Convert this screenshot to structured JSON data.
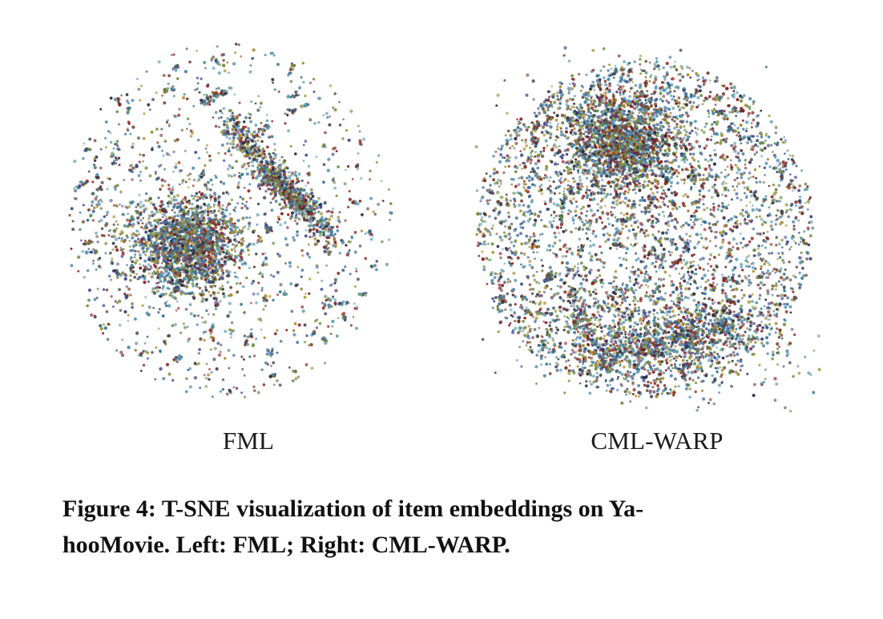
{
  "figure": {
    "panels": [
      {
        "label": "FML"
      },
      {
        "label": "CML-WARP"
      }
    ],
    "caption_line1": "Figure 4: T-SNE visualization of item embeddings on Ya-",
    "caption_line2": "hooMovie. Left: FML; Right: CML-WARP."
  },
  "colors": {
    "point_palette": [
      "#8b1a1a",
      "#2c6a8f",
      "#4a86a8",
      "#6b8a3a",
      "#a08a2a",
      "#3a4a8a",
      "#7a3a2a",
      "#5a9ab0",
      "#2a2a3a"
    ]
  }
}
